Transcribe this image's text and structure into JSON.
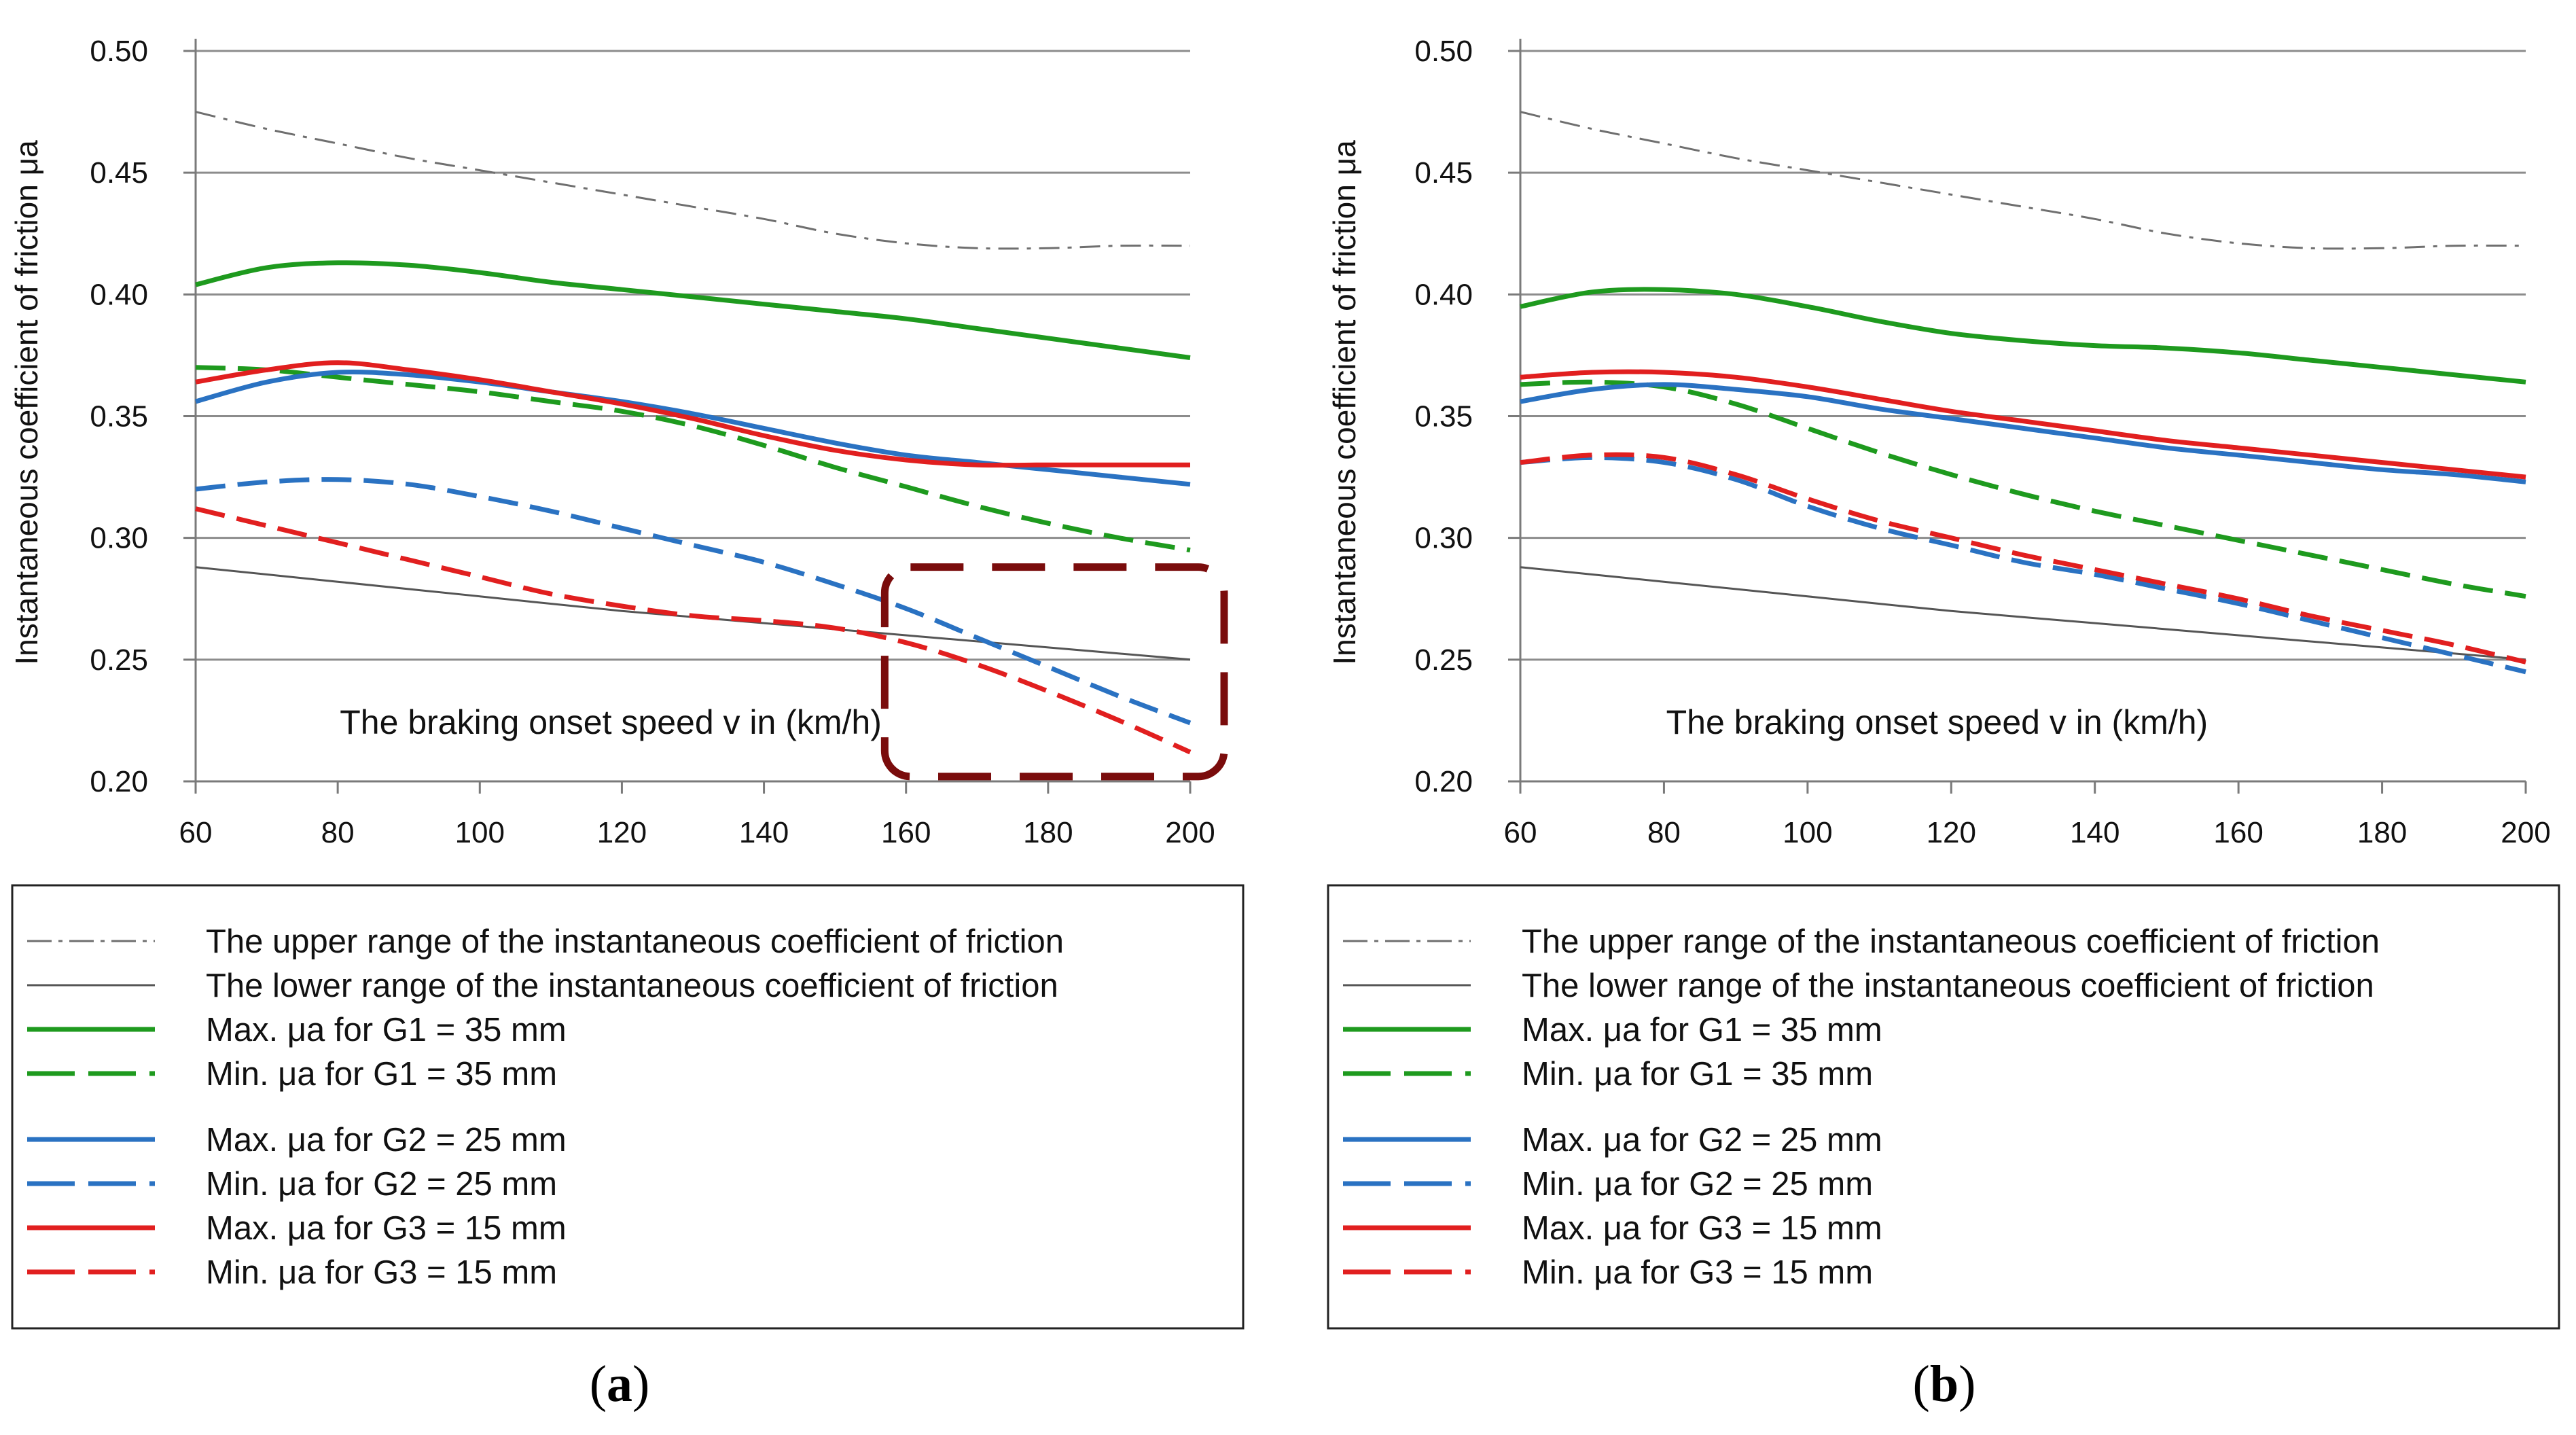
{
  "panels": [
    {
      "label": "a",
      "chart_data": {
        "type": "line",
        "title": "",
        "xlabel": "The braking onset speed v in (km/h)",
        "ylabel": "Instantaneous coefficient of friction μa",
        "xlim": [
          60,
          200
        ],
        "ylim": [
          0.2,
          0.5
        ],
        "x_ticks": [
          "60",
          "80",
          "100",
          "120",
          "140",
          "160",
          "180",
          "200"
        ],
        "y_ticks": [
          "0.20",
          "0.25",
          "0.30",
          "0.35",
          "0.40",
          "0.45",
          "0.50"
        ],
        "grid": "horizontal",
        "legend_position": "below",
        "highlight_region": {
          "x": [
            157,
            200
          ],
          "y": [
            0.202,
            0.288
          ],
          "color": "#7a0c0c",
          "style": "dashed"
        },
        "series": [
          {
            "name": "The upper range of the instantaneous coefficient of friction",
            "color": "#6f6f6f",
            "style": "dashdot",
            "weight": "thin",
            "x": [
              60,
              70,
              80,
              90,
              100,
              110,
              120,
              130,
              140,
              150,
              160,
              170,
              180,
              190,
              200
            ],
            "y": [
              0.475,
              0.468,
              0.462,
              0.456,
              0.451,
              0.446,
              0.441,
              0.436,
              0.431,
              0.425,
              0.421,
              0.419,
              0.419,
              0.42,
              0.42
            ]
          },
          {
            "name": "The lower range of the instantaneous coefficient of friction",
            "color": "#555555",
            "style": "solid",
            "weight": "thin",
            "x": [
              60,
              80,
              100,
              120,
              140,
              160,
              180,
              200
            ],
            "y": [
              0.288,
              0.282,
              0.276,
              0.27,
              0.265,
              0.26,
              0.255,
              0.25
            ]
          },
          {
            "name": "Max. μa for G1 = 35 mm",
            "color": "#1e9a1e",
            "style": "solid",
            "weight": "thick",
            "x": [
              60,
              70,
              80,
              90,
              100,
              110,
              120,
              130,
              140,
              150,
              160,
              170,
              180,
              190,
              200
            ],
            "y": [
              0.404,
              0.411,
              0.413,
              0.412,
              0.409,
              0.405,
              0.402,
              0.399,
              0.396,
              0.393,
              0.39,
              0.386,
              0.382,
              0.378,
              0.374
            ]
          },
          {
            "name": "Min. μa for G1 = 35 mm",
            "color": "#1e9a1e",
            "style": "dashed",
            "weight": "thick",
            "x": [
              60,
              70,
              80,
              90,
              100,
              110,
              120,
              130,
              140,
              150,
              160,
              170,
              180,
              190,
              200
            ],
            "y": [
              0.37,
              0.369,
              0.366,
              0.363,
              0.36,
              0.356,
              0.352,
              0.346,
              0.338,
              0.329,
              0.321,
              0.313,
              0.306,
              0.3,
              0.295
            ]
          },
          {
            "name": "Max. μa for G2 = 25 mm",
            "color": "#2a72c2",
            "style": "solid",
            "weight": "thick",
            "x": [
              60,
              70,
              80,
              90,
              100,
              110,
              120,
              130,
              140,
              150,
              160,
              170,
              180,
              190,
              200
            ],
            "y": [
              0.356,
              0.364,
              0.368,
              0.367,
              0.364,
              0.36,
              0.356,
              0.351,
              0.345,
              0.339,
              0.334,
              0.331,
              0.328,
              0.325,
              0.322
            ]
          },
          {
            "name": "Min. μa for G2 = 25 mm",
            "color": "#2a72c2",
            "style": "dashed",
            "weight": "thick",
            "x": [
              60,
              70,
              80,
              90,
              100,
              110,
              120,
              130,
              140,
              150,
              160,
              170,
              180,
              190,
              200
            ],
            "y": [
              0.32,
              0.323,
              0.324,
              0.322,
              0.317,
              0.311,
              0.304,
              0.297,
              0.29,
              0.281,
              0.271,
              0.259,
              0.247,
              0.235,
              0.224
            ]
          },
          {
            "name": "Max. μa for G3 = 15 mm",
            "color": "#e11f1f",
            "style": "solid",
            "weight": "thick",
            "x": [
              60,
              70,
              80,
              90,
              100,
              110,
              120,
              130,
              140,
              150,
              160,
              170,
              180,
              190,
              200
            ],
            "y": [
              0.364,
              0.369,
              0.372,
              0.369,
              0.365,
              0.36,
              0.355,
              0.349,
              0.342,
              0.336,
              0.332,
              0.33,
              0.33,
              0.33,
              0.33
            ]
          },
          {
            "name": "Min. μa for G3 = 15 mm",
            "color": "#e11f1f",
            "style": "dashed",
            "weight": "thick",
            "x": [
              60,
              70,
              80,
              90,
              100,
              110,
              120,
              130,
              140,
              150,
              160,
              170,
              180,
              190,
              200
            ],
            "y": [
              0.312,
              0.305,
              0.298,
              0.291,
              0.284,
              0.277,
              0.272,
              0.268,
              0.266,
              0.263,
              0.257,
              0.248,
              0.237,
              0.225,
              0.212
            ]
          }
        ]
      }
    },
    {
      "label": "b",
      "chart_data": {
        "type": "line",
        "title": "",
        "xlabel": "The braking onset speed v in (km/h)",
        "ylabel": "Instantaneous coefficient of friction μa",
        "xlim": [
          60,
          200
        ],
        "ylim": [
          0.2,
          0.5
        ],
        "x_ticks": [
          "60",
          "80",
          "100",
          "120",
          "140",
          "160",
          "180",
          "200"
        ],
        "y_ticks": [
          "0.20",
          "0.25",
          "0.30",
          "0.35",
          "0.40",
          "0.45",
          "0.50"
        ],
        "grid": "horizontal",
        "legend_position": "below",
        "series": [
          {
            "name": "The upper range of the instantaneous coefficient of friction",
            "color": "#6f6f6f",
            "style": "dashdot",
            "weight": "thin",
            "x": [
              60,
              70,
              80,
              90,
              100,
              110,
              120,
              130,
              140,
              150,
              160,
              170,
              180,
              190,
              200
            ],
            "y": [
              0.475,
              0.468,
              0.462,
              0.456,
              0.451,
              0.446,
              0.441,
              0.436,
              0.431,
              0.425,
              0.421,
              0.419,
              0.419,
              0.42,
              0.42
            ]
          },
          {
            "name": "The lower range of the instantaneous coefficient of friction",
            "color": "#555555",
            "style": "solid",
            "weight": "thin",
            "x": [
              60,
              80,
              100,
              120,
              140,
              160,
              180,
              200
            ],
            "y": [
              0.288,
              0.282,
              0.276,
              0.27,
              0.265,
              0.26,
              0.255,
              0.25
            ]
          },
          {
            "name": "Max. μa for G1 = 35 mm",
            "color": "#1e9a1e",
            "style": "solid",
            "weight": "thick",
            "x": [
              60,
              70,
              80,
              90,
              100,
              110,
              120,
              130,
              140,
              150,
              160,
              170,
              180,
              190,
              200
            ],
            "y": [
              0.395,
              0.401,
              0.402,
              0.4,
              0.395,
              0.389,
              0.384,
              0.381,
              0.379,
              0.378,
              0.376,
              0.373,
              0.37,
              0.367,
              0.364
            ]
          },
          {
            "name": "Min. μa for G1 = 35 mm",
            "color": "#1e9a1e",
            "style": "dashed",
            "weight": "thick",
            "x": [
              60,
              70,
              80,
              90,
              100,
              110,
              120,
              130,
              140,
              150,
              160,
              170,
              180,
              190,
              200
            ],
            "y": [
              0.363,
              0.364,
              0.362,
              0.355,
              0.345,
              0.335,
              0.326,
              0.318,
              0.311,
              0.305,
              0.299,
              0.293,
              0.287,
              0.281,
              0.276
            ]
          },
          {
            "name": "Max. μa for G2 = 25 mm",
            "color": "#2a72c2",
            "style": "solid",
            "weight": "thick",
            "x": [
              60,
              70,
              80,
              90,
              100,
              110,
              120,
              130,
              140,
              150,
              160,
              170,
              180,
              190,
              200
            ],
            "y": [
              0.356,
              0.361,
              0.363,
              0.361,
              0.358,
              0.353,
              0.349,
              0.345,
              0.341,
              0.337,
              0.334,
              0.331,
              0.328,
              0.326,
              0.323
            ]
          },
          {
            "name": "Min. μa for G2 = 25 mm",
            "color": "#2a72c2",
            "style": "dashed",
            "weight": "thick",
            "x": [
              60,
              70,
              80,
              90,
              100,
              110,
              120,
              130,
              140,
              150,
              160,
              170,
              180,
              190,
              200
            ],
            "y": [
              0.331,
              0.333,
              0.331,
              0.324,
              0.313,
              0.304,
              0.297,
              0.29,
              0.285,
              0.279,
              0.273,
              0.266,
              0.259,
              0.252,
              0.245
            ]
          },
          {
            "name": "Max. μa for G3 = 15 mm",
            "color": "#e11f1f",
            "style": "solid",
            "weight": "thick",
            "x": [
              60,
              70,
              80,
              90,
              100,
              110,
              120,
              130,
              140,
              150,
              160,
              170,
              180,
              190,
              200
            ],
            "y": [
              0.366,
              0.368,
              0.368,
              0.366,
              0.362,
              0.357,
              0.352,
              0.348,
              0.344,
              0.34,
              0.337,
              0.334,
              0.331,
              0.328,
              0.325
            ]
          },
          {
            "name": "Min. μa for G3 = 15 mm",
            "color": "#e11f1f",
            "style": "dashed",
            "weight": "thick",
            "x": [
              60,
              70,
              80,
              90,
              100,
              110,
              120,
              130,
              140,
              150,
              160,
              170,
              180,
              190,
              200
            ],
            "y": [
              0.331,
              0.334,
              0.333,
              0.326,
              0.316,
              0.307,
              0.3,
              0.293,
              0.287,
              0.281,
              0.275,
              0.268,
              0.262,
              0.256,
              0.249
            ]
          }
        ]
      }
    }
  ]
}
